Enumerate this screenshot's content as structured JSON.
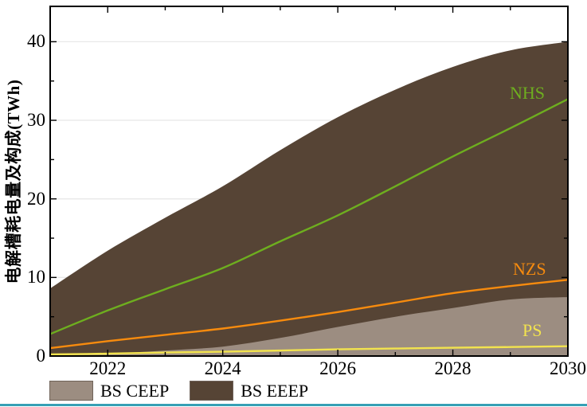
{
  "chart_data": {
    "type": "area",
    "ylabel": "电解槽耗电量及构成(TWh)",
    "x": [
      2021,
      2022,
      2023,
      2024,
      2025,
      2026,
      2027,
      2028,
      2029,
      2030
    ],
    "xlim": [
      2021,
      2030
    ],
    "ylim": [
      0,
      44.5
    ],
    "x_major_ticks": [
      2022,
      2024,
      2026,
      2028,
      2030
    ],
    "x_minor_ticks": [
      2023,
      2025,
      2027,
      2029
    ],
    "y_major_ticks": [
      0,
      10,
      20,
      30,
      40
    ],
    "y_minor_ticks": [
      5,
      15,
      25,
      35
    ],
    "grid": "horizontal-major, light gray, behind areas",
    "axis_color": "#000000",
    "gridline_color": "#e8e8e8",
    "areas": [
      {
        "name": "BS EEEP",
        "color": "#564435",
        "values": [
          8.6,
          13.4,
          17.6,
          21.6,
          26.2,
          30.4,
          33.9,
          36.8,
          38.9,
          40.0
        ]
      },
      {
        "name": "BS CEEP",
        "color": "#9c8d81",
        "values": [
          0.1,
          0.3,
          0.7,
          1.2,
          2.3,
          3.7,
          5.0,
          6.1,
          7.2,
          7.5
        ]
      }
    ],
    "lines": [
      {
        "name": "NHS",
        "color": "#6eae1f",
        "values": [
          2.8,
          5.8,
          8.5,
          11.2,
          14.6,
          17.9,
          21.6,
          25.4,
          29.0,
          32.7
        ]
      },
      {
        "name": "NZS",
        "color": "#f78b0e",
        "values": [
          1.0,
          1.9,
          2.7,
          3.5,
          4.5,
          5.6,
          6.8,
          8.0,
          8.9,
          9.7
        ]
      },
      {
        "name": "PS",
        "color": "#f2e34e",
        "values": [
          0.2,
          0.3,
          0.45,
          0.55,
          0.7,
          0.85,
          0.95,
          1.05,
          1.15,
          1.25
        ]
      }
    ],
    "legend": [
      {
        "label": "BS CEEP",
        "color": "#9c8d81"
      },
      {
        "label": "BS EEEP",
        "color": "#564435"
      }
    ],
    "legend_position": "bottom-left",
    "bottom_rule_color": "#36a0b5"
  }
}
